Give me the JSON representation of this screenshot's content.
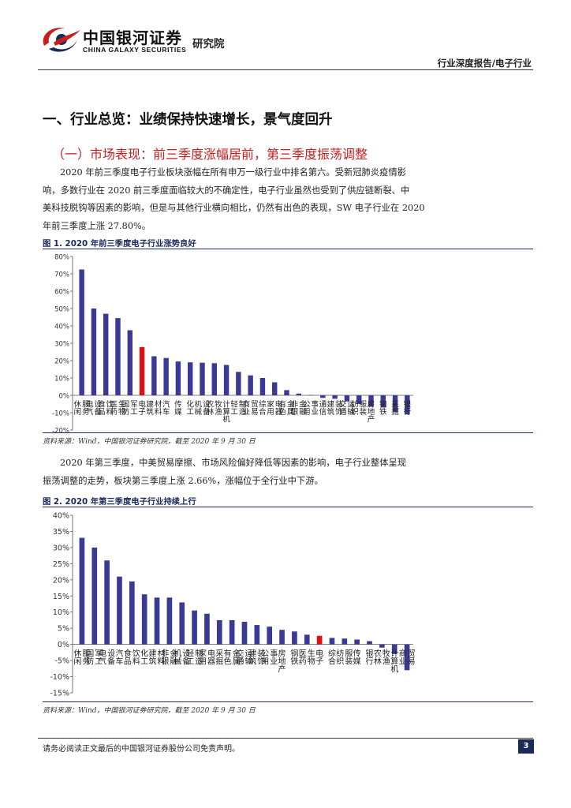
{
  "header": {
    "logo_cn": "中国银河证券",
    "logo_en": "CHINA GALAXY SECURITIES",
    "institute": "研究院",
    "report_type": "行业深度报告/电子行业"
  },
  "section_title": "一、行业总览：业绩保持快速增长，景气度回升",
  "subsection_title": "（一）市场表现：前三季度涨幅居前，第三季度振荡调整",
  "paragraph1": [
    "2020 年前三季度电子行业板块涨幅在所有申万一级行业中排名第六。受新冠肺炎疫情影",
    "响，多数行业在 2020 前三季度面临较大的不确定性，电子行业虽然也受到了供应链断裂、中",
    "美科技脱钩等因素的影响，但是与其他行业横向相比，仍然有出色的表现，SW 电子行业在 2020",
    "年前三季度上涨 27.80%。"
  ],
  "paragraph2": [
    "2020 年第三季度，中美贸易摩擦、市场风险偏好降低等因素的影响，电子行业整体呈现",
    "振荡调整的走势，板块第三季度上涨 2.66%，涨幅位于全行业中下游。"
  ],
  "colors": {
    "bar": "#3a3a96",
    "highlight": "#e01010",
    "navy": "#1a2a5a",
    "accent_red": "#c81e1e"
  },
  "chart_data": [
    {
      "type": "bar",
      "title": "图 1. 2020 年前三季度电子行业涨势良好",
      "source": "资料来源：Wind，中国银河证券研究院，截至 2020 年 9 月 30 日",
      "categories": [
        "休闲服务",
        "电气设备",
        "食品饮料",
        "医药生物",
        "国防军工",
        "电子",
        "建筑材料",
        "汽车",
        "传媒",
        "化工",
        "机械设备",
        "农林牧渔",
        "计算机",
        "轻工制造",
        "商业贸易",
        "综合",
        "家用电器",
        "有色金属",
        "非银金融",
        "公用事业",
        "通信",
        "建筑装饰",
        "交通运输",
        "纺织服装",
        "房地产",
        "钢铁",
        "采掘",
        "银行"
      ],
      "highlight_index": 5,
      "values": [
        72.5,
        50.0,
        47.0,
        44.5,
        37.5,
        27.8,
        22.5,
        21.5,
        19.5,
        19.0,
        18.8,
        18.5,
        17.5,
        13.5,
        11.5,
        10.0,
        7.5,
        3.0,
        1.0,
        0.2,
        -1.5,
        -2.0,
        -3.5,
        -5.0,
        -6.5,
        -7.0,
        -9.5,
        -11.0
      ],
      "ylim": [
        -20,
        80
      ],
      "yticks": [
        "80%",
        "70%",
        "60%",
        "50%",
        "40%",
        "30%",
        "20%",
        "10%",
        "0%",
        "-10%",
        "-20%"
      ]
    },
    {
      "type": "bar",
      "title": "图 2. 2020 年第三季度电子行业持续上行",
      "source": "资料来源：Wind，中国银河证券研究院，截至 2020 年 9 月 30 日",
      "categories": [
        "休闲服务",
        "国防军工",
        "电气设备",
        "汽车",
        "食品饮料",
        "化工",
        "建筑材料",
        "非银金融",
        "机械设备",
        "轻工制造",
        "家用电器",
        "采掘",
        "有色金属",
        "交通运输",
        "建筑装饰",
        "公用事业",
        "房地产",
        "钢铁",
        "医药生物",
        "电子",
        "综合",
        "纺织服装",
        "传媒",
        "银行",
        "农林牧渔",
        "计算机",
        "商业贸易"
      ],
      "highlight_index": 19,
      "values": [
        33.0,
        30.0,
        26.0,
        21.0,
        19.5,
        15.5,
        14.5,
        14.5,
        13.0,
        10.5,
        9.5,
        7.5,
        7.5,
        7.0,
        6.0,
        5.5,
        4.5,
        4.0,
        3.0,
        2.66,
        2.0,
        1.8,
        1.5,
        1.0,
        -1.0,
        -3.0,
        -8.0
      ],
      "ylim": [
        -15,
        40
      ],
      "yticks": [
        "40%",
        "35%",
        "30%",
        "25%",
        "20%",
        "15%",
        "10%",
        "5%",
        "0%",
        "-5%",
        "-10%",
        "-15%"
      ]
    }
  ],
  "footer": {
    "disclaimer": "请务必阅读正文最后的中国银河证券股份公司免责声明。",
    "page": "3"
  }
}
